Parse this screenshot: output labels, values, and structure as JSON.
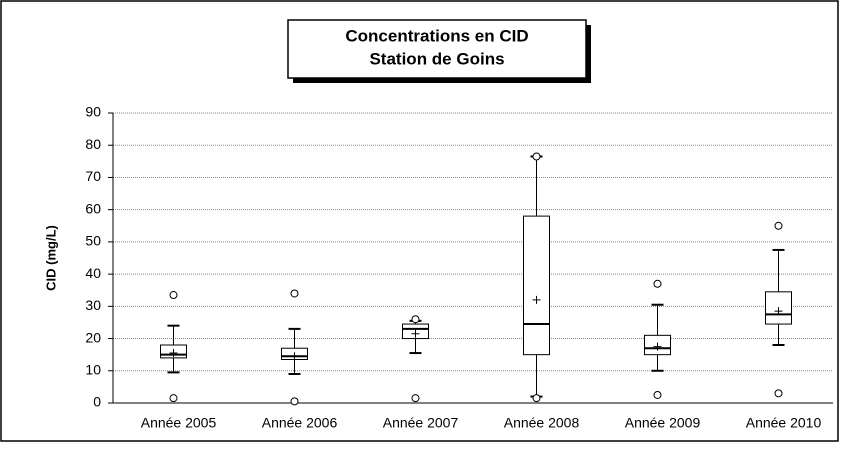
{
  "chart_data": {
    "type": "box",
    "title": [
      "Concentrations en CID",
      "Station de Goins"
    ],
    "y_label": "CID (mg/L)",
    "categories": [
      "Année 2005",
      "Année 2006",
      "Année 2007",
      "Année 2008",
      "Année 2009",
      "Année 2010"
    ],
    "boxes": [
      {
        "min": 1.5,
        "whisker_low": 9.5,
        "q1": 14,
        "median": 15,
        "q3": 18,
        "whisker_high": 24,
        "max": 33.5,
        "mean": 15.5
      },
      {
        "min": 0.5,
        "whisker_low": 9,
        "q1": 13.5,
        "median": 14.5,
        "q3": 17,
        "whisker_high": 23,
        "max": 34,
        "mean": 14.5
      },
      {
        "min": 1.5,
        "whisker_low": 15.5,
        "q1": 20,
        "median": 23,
        "q3": 24.5,
        "whisker_high": 25.5,
        "max": 26,
        "mean": 21.5
      },
      {
        "min": 1.5,
        "whisker_low": 2,
        "q1": 15,
        "median": 24.5,
        "q3": 58,
        "whisker_high": 76.5,
        "max": 76.5,
        "mean": 32
      },
      {
        "min": 2.5,
        "whisker_low": 10,
        "q1": 15,
        "median": 17,
        "q3": 21,
        "whisker_high": 30.5,
        "max": 37,
        "mean": 17.5
      },
      {
        "min": 3,
        "whisker_low": 18,
        "q1": 24.5,
        "median": 27.5,
        "q3": 34.5,
        "whisker_high": 47.5,
        "max": 55,
        "mean": 28.5
      }
    ],
    "color": "#000000",
    "ylim": [
      0,
      90
    ],
    "yticks": [
      0,
      10,
      20,
      30,
      40,
      50,
      60,
      70,
      80,
      90
    ],
    "grid": true
  }
}
